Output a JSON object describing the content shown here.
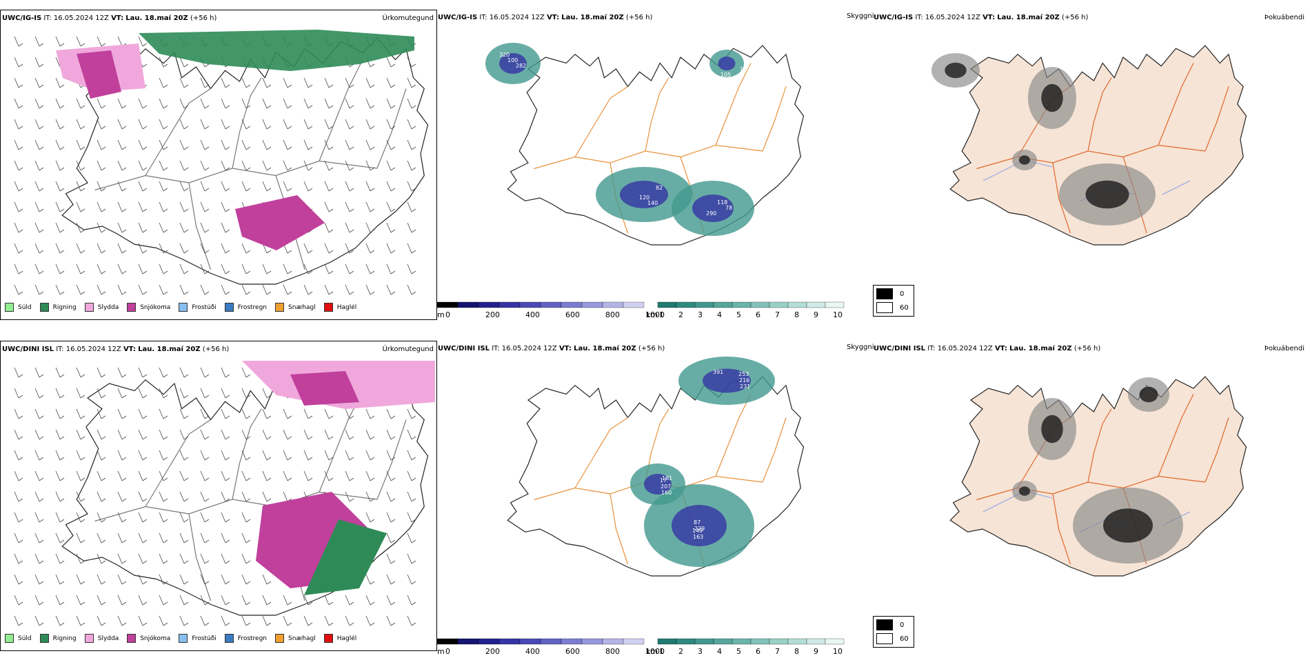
{
  "rows": [
    {
      "model_label": "UWC/IG-IS",
      "it_prefix": "IT:",
      "it_value": "16.05.2024 12Z",
      "vt_prefix": "VT:",
      "vt_value": "Lau. 18.maí 20Z",
      "lead": "(+56 h)",
      "vis_labels": [
        "320",
        "120",
        "118",
        "102",
        "100",
        "140",
        "78",
        "105",
        "282",
        "82",
        "290"
      ]
    },
    {
      "model_label": "UWC/DINI ISL",
      "it_prefix": "IT:",
      "it_value": "16.05.2024 12Z",
      "vt_prefix": "VT:",
      "vt_value": "Lau. 18.maí 20Z",
      "lead": "(+56 h)",
      "vis_labels": [
        "391",
        "229",
        "181",
        "231",
        "87",
        "160",
        "216",
        "163",
        "207",
        "253",
        "149",
        "17"
      ]
    }
  ],
  "panel_kinds": {
    "precip": "Úrkomutegund",
    "visibility": "Skyggni",
    "cloud": "Þokuábendi"
  },
  "precip_legend": [
    {
      "label": "Súld",
      "color": "#90ee90"
    },
    {
      "label": "Rigning",
      "color": "#2e8b57"
    },
    {
      "label": "Slydda",
      "color": "#f0a8dc"
    },
    {
      "label": "Snjókoma",
      "color": "#c0409c"
    },
    {
      "label": "Frostúði",
      "color": "#87bff0"
    },
    {
      "label": "Frostregn",
      "color": "#3a7cc4"
    },
    {
      "label": "Snæhagl",
      "color": "#f0a030"
    },
    {
      "label": "Haglél",
      "color": "#e01010"
    }
  ],
  "vis_bars": {
    "m_unit": "m",
    "m_ticks": [
      "0",
      "200",
      "400",
      "600",
      "800",
      "1000"
    ],
    "km_unit": "km",
    "km_ticks": [
      "1",
      "2",
      "3",
      "4",
      "5",
      "6",
      "7",
      "8",
      "9",
      "10"
    ],
    "m_colors": [
      "#000000",
      "#141470",
      "#22228e",
      "#3434a4",
      "#4a4ab6",
      "#6262c4",
      "#7c7cd0",
      "#9898dc",
      "#b4b4e6",
      "#d0d0f0"
    ],
    "km_colors": [
      "#1f7a70",
      "#2f8a80",
      "#42988e",
      "#56a69c",
      "#6bb4aa",
      "#82c2b8",
      "#9ad0c6",
      "#b4ded6",
      "#cfeae4",
      "#eaf6f2"
    ]
  },
  "cloud_legend": [
    {
      "label": "0",
      "color": "#000000"
    },
    {
      "label": "60",
      "color": "#ffffff"
    }
  ],
  "colors": {
    "land": "#f6e4d6",
    "roads": "#e0682a",
    "rivers": "#8aa0e8",
    "coast": "#222222"
  }
}
